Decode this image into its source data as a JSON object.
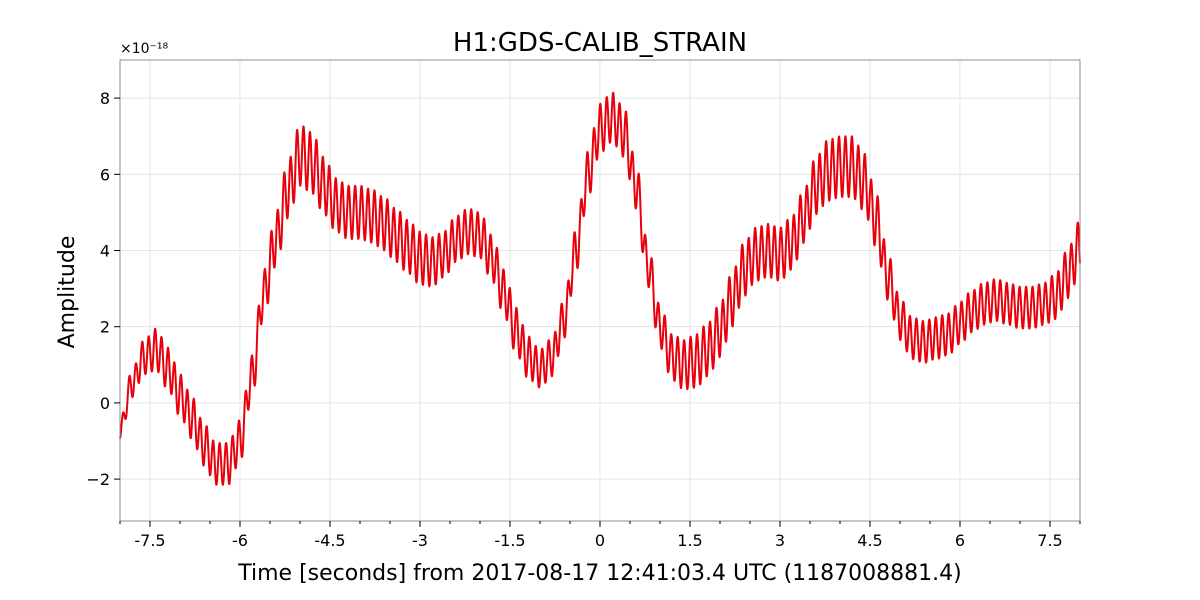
{
  "chart_data": {
    "type": "line",
    "title": "H1:GDS-CALIB_STRAIN",
    "xlabel": "Time [seconds] from 2017-08-17 12:41:03.4 UTC (1187008881.4)",
    "ylabel": "Amplitude",
    "y_scale_label": "×10⁻¹⁸",
    "xlim": [
      -8,
      8
    ],
    "ylim": [
      -3.1,
      9.0
    ],
    "x_ticks": [
      -7.5,
      -6,
      -4.5,
      -3,
      -1.5,
      0,
      1.5,
      3,
      4.5,
      6,
      7.5
    ],
    "x_tick_labels": [
      "-7.5",
      "-6",
      "-4.5",
      "-3",
      "-1.5",
      "0",
      "1.5",
      "3",
      "4.5",
      "6",
      "7.5"
    ],
    "y_ticks": [
      -2,
      0,
      2,
      4,
      6,
      8
    ],
    "y_tick_labels": [
      "−2",
      "0",
      "2",
      "4",
      "6",
      "8"
    ],
    "grid": true,
    "series": [
      {
        "color": "#e8000b",
        "envelope": {
          "x": [
            -8.0,
            -7.8,
            -7.6,
            -7.4,
            -7.2,
            -7.0,
            -6.8,
            -6.6,
            -6.4,
            -6.2,
            -6.0,
            -5.8,
            -5.6,
            -5.4,
            -5.2,
            -5.0,
            -4.8,
            -4.6,
            -4.4,
            -4.2,
            -4.0,
            -3.8,
            -3.6,
            -3.4,
            -3.2,
            -3.0,
            -2.8,
            -2.6,
            -2.4,
            -2.2,
            -2.0,
            -1.8,
            -1.6,
            -1.4,
            -1.2,
            -1.0,
            -0.8,
            -0.6,
            -0.4,
            -0.2,
            0.0,
            0.2,
            0.4,
            0.6,
            0.8,
            1.0,
            1.2,
            1.4,
            1.6,
            1.8,
            2.0,
            2.2,
            2.4,
            2.6,
            2.8,
            3.0,
            3.2,
            3.4,
            3.6,
            3.8,
            4.0,
            4.2,
            4.4,
            4.6,
            4.8,
            5.0,
            5.2,
            5.4,
            5.6,
            5.8,
            6.0,
            6.2,
            6.4,
            6.6,
            6.8,
            7.0,
            7.2,
            7.4,
            7.6,
            7.8,
            8.0
          ],
          "center": [
            -0.7,
            0.5,
            1.2,
            1.4,
            0.9,
            0.2,
            -0.4,
            -1.1,
            -1.6,
            -1.6,
            -1.0,
            0.7,
            2.9,
            4.3,
            5.6,
            6.5,
            6.3,
            5.7,
            5.2,
            5.0,
            5.0,
            4.9,
            4.7,
            4.4,
            4.1,
            3.8,
            3.7,
            3.9,
            4.3,
            4.5,
            4.4,
            3.8,
            2.9,
            1.9,
            1.2,
            0.9,
            1.2,
            2.2,
            4.0,
            6.0,
            7.2,
            7.5,
            7.1,
            5.7,
            3.6,
            2.0,
            1.2,
            1.0,
            1.1,
            1.4,
            1.9,
            2.7,
            3.5,
            3.9,
            4.0,
            3.9,
            4.2,
            4.9,
            5.7,
            6.1,
            6.2,
            6.2,
            5.8,
            4.8,
            3.3,
            2.2,
            1.7,
            1.6,
            1.7,
            1.8,
            2.1,
            2.4,
            2.6,
            2.7,
            2.6,
            2.5,
            2.5,
            2.6,
            2.8,
            3.4,
            4.1
          ],
          "amplitude": [
            0.25,
            0.35,
            0.45,
            0.55,
            0.55,
            0.55,
            0.55,
            0.55,
            0.55,
            0.55,
            0.55,
            0.55,
            0.6,
            0.7,
            0.75,
            0.8,
            0.8,
            0.75,
            0.7,
            0.7,
            0.7,
            0.7,
            0.7,
            0.7,
            0.7,
            0.7,
            0.65,
            0.6,
            0.6,
            0.6,
            0.6,
            0.6,
            0.6,
            0.6,
            0.55,
            0.5,
            0.5,
            0.5,
            0.55,
            0.6,
            0.65,
            0.65,
            0.65,
            0.6,
            0.55,
            0.55,
            0.6,
            0.65,
            0.7,
            0.7,
            0.7,
            0.7,
            0.7,
            0.7,
            0.7,
            0.7,
            0.7,
            0.7,
            0.75,
            0.8,
            0.8,
            0.8,
            0.75,
            0.7,
            0.6,
            0.55,
            0.55,
            0.55,
            0.55,
            0.55,
            0.55,
            0.55,
            0.55,
            0.55,
            0.55,
            0.55,
            0.55,
            0.55,
            0.6,
            0.65,
            0.7
          ],
          "oscillation_frequency_hz": 9.3
        }
      }
    ]
  }
}
